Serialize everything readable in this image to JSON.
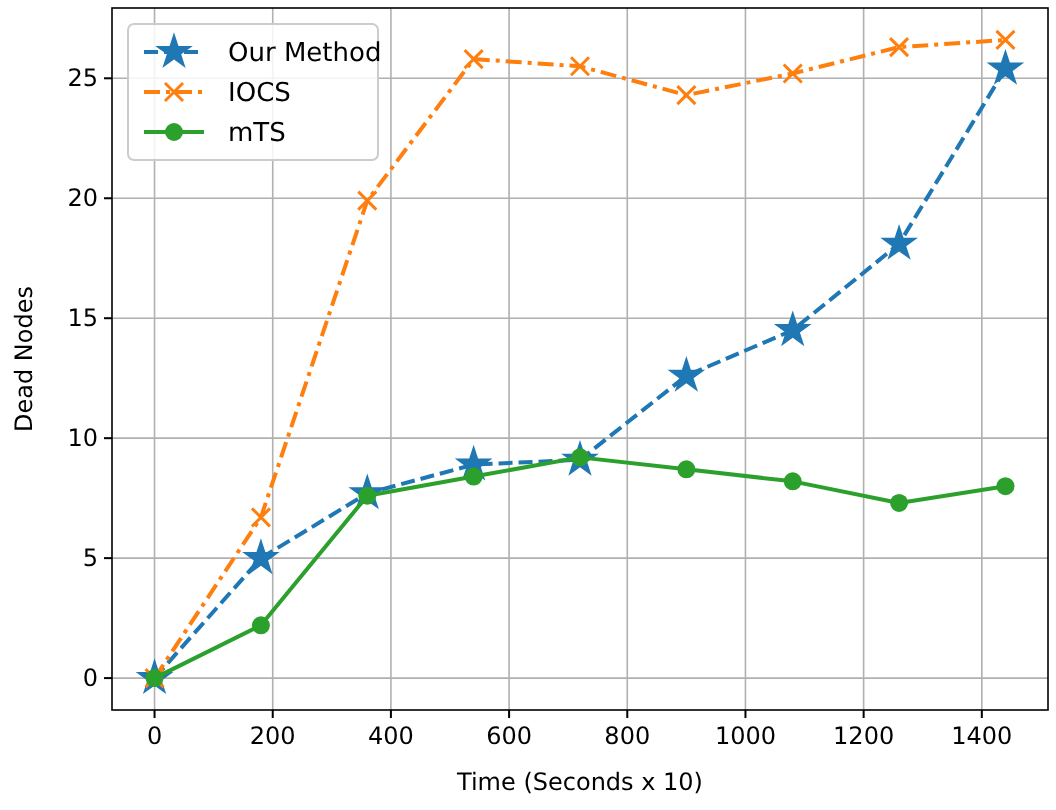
{
  "chart_data": {
    "type": "line",
    "xlabel": "Time (Seconds x 10)",
    "ylabel": "Dead Nodes",
    "x": [
      0,
      180,
      360,
      540,
      720,
      900,
      1080,
      1260,
      1440
    ],
    "series": [
      {
        "name": "Our Method",
        "color": "#1f77b4",
        "marker": "star",
        "line_style": "dashed",
        "values": [
          0,
          5,
          7.7,
          8.9,
          9.1,
          12.6,
          14.5,
          18.1,
          25.4
        ]
      },
      {
        "name": "IOCS",
        "color": "#ff7f0e",
        "marker": "cross",
        "line_style": "dashdot",
        "values": [
          0,
          6.7,
          19.9,
          25.8,
          25.5,
          24.3,
          25.2,
          26.3,
          26.6
        ]
      },
      {
        "name": "mTS",
        "color": "#2ca02c",
        "marker": "circle",
        "line_style": "solid",
        "values": [
          0,
          2.2,
          7.6,
          8.4,
          9.2,
          8.7,
          8.2,
          7.3,
          8.0
        ]
      }
    ],
    "xlim": [
      -72,
      1512
    ],
    "ylim": [
      -1.33,
      27.93
    ],
    "xticks": [
      0,
      200,
      400,
      600,
      800,
      1000,
      1200,
      1400
    ],
    "yticks": [
      0,
      5,
      10,
      15,
      20,
      25
    ],
    "grid": true,
    "legend": "top left"
  }
}
